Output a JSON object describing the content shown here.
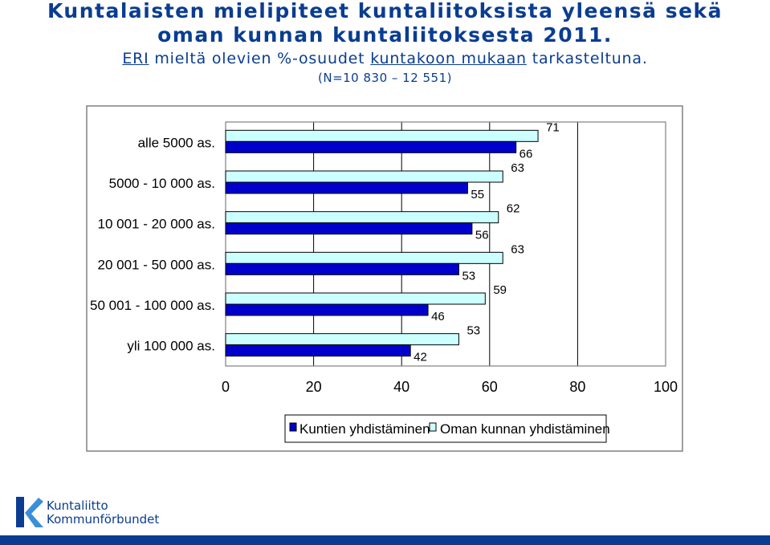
{
  "header": {
    "title_line1": "Kuntalaisten mielipiteet kuntaliitoksista yleensä sekä",
    "title_line2": "oman kunnan kuntaliitoksesta 2011.",
    "subtitle_eri": "ERI",
    "subtitle_mid": " mieltä olevien %-osuudet ",
    "subtitle_kuntakoon": "kuntakoon mukaan",
    "subtitle_end": " tarkasteltuna.",
    "n_note": "(N=10 830 – 12 551)"
  },
  "colors": {
    "title": "#0a3d91",
    "series1": "#0000cc",
    "series2": "#ccffff",
    "border": "#000000",
    "frame": "#808080",
    "brand": "#0a3d91"
  },
  "chart_data": {
    "type": "bar",
    "orientation": "horizontal",
    "categories": [
      "alle 5000 as.",
      "5000 - 10 000 as.",
      "10 001 - 20 000 as.",
      "20 001 - 50 000 as.",
      "50 001 - 100 000 as.",
      "yli 100 000 as."
    ],
    "series": [
      {
        "name": "Kuntien yhdistäminen",
        "values": [
          66,
          55,
          56,
          53,
          46,
          42
        ]
      },
      {
        "name": "Oman kunnan yhdistäminen",
        "values": [
          71,
          63,
          62,
          63,
          59,
          53
        ]
      }
    ],
    "xlim": [
      0,
      100
    ],
    "xticks": [
      "0",
      "20",
      "40",
      "60",
      "80",
      "100"
    ],
    "grid": "vertical",
    "legend": "bottom"
  },
  "logo": {
    "icon": "kuntaliitto-k-logo-icon",
    "line1": "Kuntaliitto",
    "line2": "Kommunförbundet"
  }
}
